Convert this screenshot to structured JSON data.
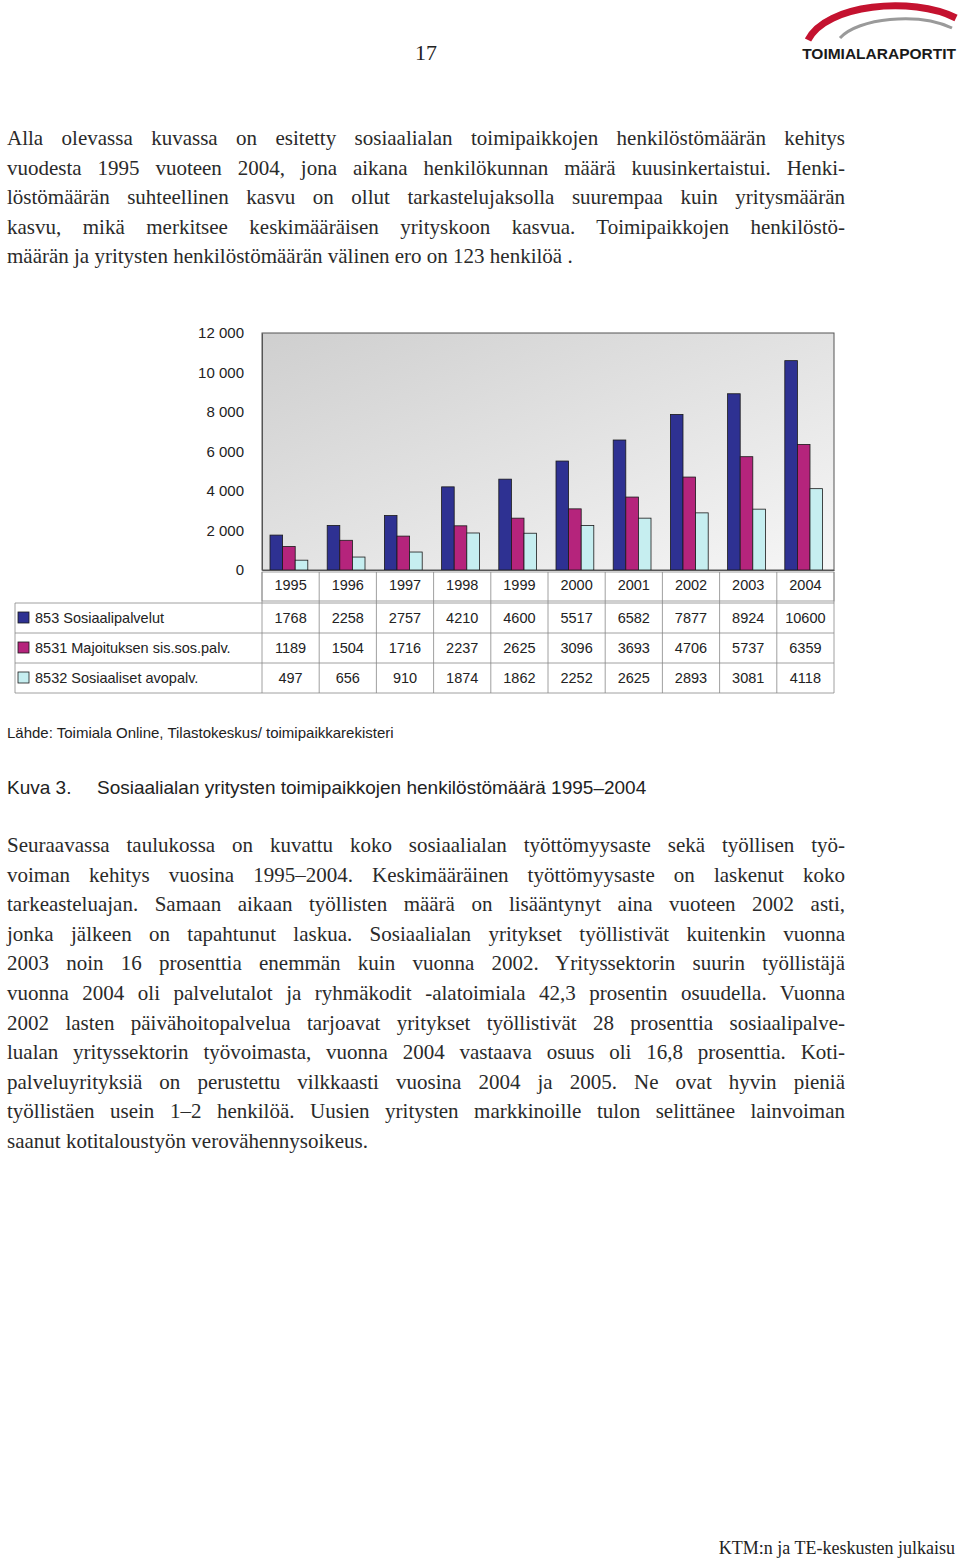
{
  "header": {
    "page_number": "17",
    "logo": "TOIMIALARAPORTIT"
  },
  "intro": [
    "Alla olevassa kuvassa on esitetty sosiaalialan toimipaikkojen henkilöstömäärän kehitys",
    "vuodesta 1995 vuoteen 2004, jona aikana henkilökunnan määrä kuusinkertaistui. Henki-",
    "löstömäärän suhteellinen kasvu on ollut tarkastelujaksolla suurempaa kuin yritysmäärän",
    "kasvu, mikä merkitsee keskimääräisen yrityskoon kasvua. Toimipaikkojen henkilöstö-",
    "määrän ja yritysten henkilöstömäärän välinen ero on 123 henkilöä ."
  ],
  "chart_data": {
    "type": "bar",
    "title": "Sosiaalialan yritysten toimipaikkojen henkilöstömäärä 1995–2004",
    "categories": [
      "1995",
      "1996",
      "1997",
      "1998",
      "1999",
      "2000",
      "2001",
      "2002",
      "2003",
      "2004"
    ],
    "series": [
      {
        "name": "853 Sosiaalipalvelut",
        "color": "#2e3192",
        "values": [
          1768,
          2258,
          2757,
          4210,
          4600,
          5517,
          6582,
          7877,
          8924,
          10600
        ]
      },
      {
        "name": "8531 Majoituksen sis.sos.palv.",
        "color": "#b5247c",
        "values": [
          1189,
          1504,
          1716,
          2237,
          2625,
          3096,
          3693,
          4706,
          5737,
          6359
        ]
      },
      {
        "name": "8532 Sosiaaliset avopalv.",
        "color": "#c6eef0",
        "values": [
          497,
          656,
          910,
          1874,
          1862,
          2252,
          2625,
          2893,
          3081,
          4118
        ]
      }
    ],
    "ylim": [
      0,
      12000
    ],
    "yticks": [
      0,
      {
        "value": 2000,
        "label": "2 000"
      },
      {
        "value": 4000,
        "label": "4 000"
      },
      {
        "value": 6000,
        "label": "6 000"
      },
      {
        "value": 8000,
        "label": "8 000"
      },
      {
        "value": 10000,
        "label": "10 000"
      },
      {
        "value": 12000,
        "label": "12 000"
      }
    ],
    "grid": false
  },
  "source": "Lähde: Toimiala Online, Tilastokeskus/ toimipaikkarekisteri",
  "figure_label": "Kuva 3.",
  "body": [
    "Seuraavassa taulukossa on kuvattu koko sosiaalialan työttömyysaste sekä työllisen työ-",
    "voiman kehitys vuosina 1995–2004. Keskimääräinen työttömyysaste on laskenut koko",
    "tarkeasteluajan. Samaan aikaan työllisten määrä on lisääntynyt aina vuoteen 2002 asti,",
    "jonka jälkeen on tapahtunut laskua. Sosiaalialan yritykset työllistivät kuitenkin vuonna",
    "2003 noin 16 prosenttia enemmän kuin vuonna 2002. Yrityssektorin suurin työllistäjä",
    "vuonna 2004 oli palvelutalot ja ryhmäkodit -alatoimiala 42,3 prosentin osuudella. Vuonna",
    "2002 lasten päivähoitopalvelua tarjoavat yritykset työllistivät 28 prosenttia sosiaalipalve-",
    "lualan yrityssektorin työvoimasta, vuonna 2004 vastaava osuus oli 16,8 prosenttia. Koti-",
    "palveluyrityksiä on perustettu vilkkaasti vuosina 2004 ja 2005. Ne ovat hyvin pieniä",
    "työllistäen usein 1–2 henkilöä. Uusien yritysten markkinoille tulon selittänee lainvoiman",
    "saanut kotitaloustyön verovähennysoikeus."
  ],
  "footer": "KTM:n ja TE-keskusten julkaisu"
}
